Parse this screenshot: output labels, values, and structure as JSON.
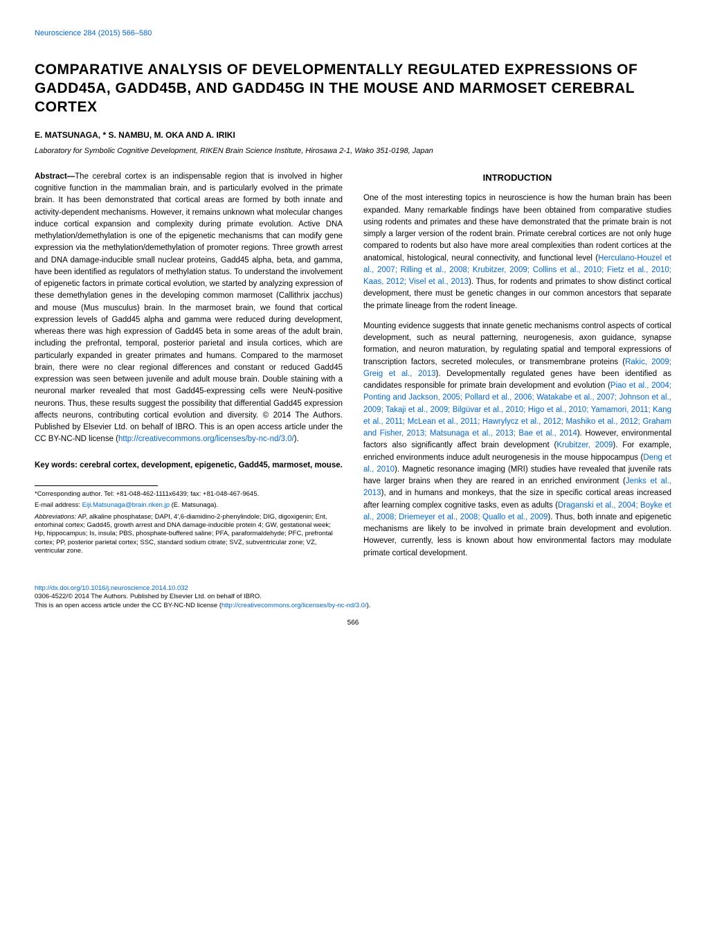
{
  "journal": {
    "name": "Neuroscience 284 (2015) 566–580"
  },
  "title": "COMPARATIVE ANALYSIS OF DEVELOPMENTALLY REGULATED EXPRESSIONS OF GADD45A, GADD45B, AND GADD45G IN THE MOUSE AND MARMOSET CEREBRAL CORTEX",
  "authors": "E. MATSUNAGA, * S. NAMBU, M. OKA AND A. IRIKI",
  "affiliation": "Laboratory for Symbolic Cognitive Development, RIKEN Brain Science Institute, Hirosawa 2-1, Wako 351-0198, Japan",
  "abstract": {
    "label": "Abstract—",
    "text": "The cerebral cortex is an indispensable region that is involved in higher cognitive function in the mammalian brain, and is particularly evolved in the primate brain. It has been demonstrated that cortical areas are formed by both innate and activity-dependent mechanisms. However, it remains unknown what molecular changes induce cortical expansion and complexity during primate evolution. Active DNA methylation/demethylation is one of the epigenetic mechanisms that can modify gene expression via the methylation/demethylation of promoter regions. Three growth arrest and DNA damage-inducible small nuclear proteins, Gadd45 alpha, beta, and gamma, have been identified as regulators of methylation status. To understand the involvement of epigenetic factors in primate cortical evolution, we started by analyzing expression of these demethylation genes in the developing common marmoset (Callithrix jacchus) and mouse (Mus musculus) brain. In the marmoset brain, we found that cortical expression levels of Gadd45 alpha and gamma were reduced during development, whereas there was high expression of Gadd45 beta in some areas of the adult brain, including the prefrontal, temporal, posterior parietal and insula cortices, which are particularly expanded in greater primates and humans. Compared to the marmoset brain, there were no clear regional differences and constant or reduced Gadd45 expression was seen between juvenile and adult mouse brain. Double staining with a neuronal marker revealed that most Gadd45-expressing cells were NeuN-positive neurons. Thus, these results suggest the possibility that differential Gadd45 expression affects neurons, contributing cortical evolution and diversity. © 2014 The Authors. Published by Elsevier Ltd. on behalf of IBRO. This is an open access article under the CC BY-NC-ND license (",
    "license_url": "http://creativecommons.org/licenses/by-nc-nd/3.0/",
    "closing": ")."
  },
  "keywords": "Key words: cerebral cortex, development, epigenetic, Gadd45, marmoset, mouse.",
  "footnotes": {
    "corresponding": "*Corresponding author. Tel: +81-048-462-1111x6439; fax: +81-048-467-9645.",
    "email_prefix": "E-mail address: ",
    "email": "Eiji.Matsunaga@brain.riken.jp",
    "email_suffix": " (E. Matsunaga).",
    "abbreviations_label": "Abbreviations:",
    "abbreviations_text": " AP, alkaline phosphatase; DAPI, 4′,6-diamidino-2-phenylindole; DIG, digoxigenin; Ent, entorhinal cortex; Gadd45, growth arrest and DNA damage-inducible protein 4; GW, gestational week; Hp, hippocampus; Is, insula; PBS, phosphate-buffered saline; PFA, paraformaldehyde; PFC, prefrontal cortex; PP, posterior parietal cortex; SSC, standard sodium citrate; SVZ, subventricular zone; VZ, ventricular zone."
  },
  "intro": {
    "heading": "INTRODUCTION",
    "para1_a": "One of the most interesting topics in neuroscience is how the human brain has been expanded. Many remarkable findings have been obtained from comparative studies using rodents and primates and these have demonstrated that the primate brain is not simply a larger version of the rodent brain. Primate cerebral cortices are not only huge compared to rodents but also have more areal complexities than rodent cortices at the anatomical, histological, neural connectivity, and functional level (",
    "para1_ref1": "Herculano-Houzel et al., 2007; Rilling et al., 2008; Krubitzer, 2009; Collins et al., 2010; Fietz et al., 2010; Kaas, 2012; Visel et al., 2013",
    "para1_b": "). Thus, for rodents and primates to show distinct cortical development, there must be genetic changes in our common ancestors that separate the primate lineage from the rodent lineage.",
    "para2_a": "Mounting evidence suggests that innate genetic mechanisms control aspects of cortical development, such as neural patterning, neurogenesis, axon guidance, synapse formation, and neuron maturation, by regulating spatial and temporal expressions of transcription factors, secreted molecules, or transmembrane proteins (",
    "para2_ref1": "Rakic, 2009; Greig et al., 2013",
    "para2_b": "). Developmentally regulated genes have been identified as candidates responsible for primate brain development and evolution (",
    "para2_ref2": "Piao et al., 2004; Ponting and Jackson, 2005; Pollard et al., 2006; Watakabe et al., 2007; Johnson et al., 2009; Takaji et al., 2009; Bilgüvar et al., 2010; Higo et al., 2010; Yamamori, 2011; Kang et al., 2011; McLean et al., 2011; Hawrylycz et al., 2012; Mashiko et al., 2012; Graham and Fisher, 2013; Matsunaga et al., 2013; Bae et al., 2014",
    "para2_c": "). However, environmental factors also significantly affect brain development (",
    "para2_ref3": "Krubitzer, 2009",
    "para2_d": "). For example, enriched environments induce adult neurogenesis in the mouse hippocampus (",
    "para2_ref4": "Deng et al., 2010",
    "para2_e": "). Magnetic resonance imaging (MRI) studies have revealed that juvenile rats have larger brains when they are reared in an enriched environment (",
    "para2_ref5": "Jenks et al., 2013",
    "para2_f": "), and in humans and monkeys, that the size in specific cortical areas increased after learning complex cognitive tasks, even as adults (",
    "para2_ref6": "Draganski et al., 2004; Boyke et al., 2008; Driemeyer et al., 2008; Quallo et al., 2009",
    "para2_g": "). Thus, both innate and epigenetic mechanisms are likely to be involved in primate brain development and evolution. However, currently, less is known about how environmental factors may modulate primate cortical development."
  },
  "footer": {
    "doi": "http://dx.doi.org/10.1016/j.neuroscience.2014.10.032",
    "copyright": "0306-4522/© 2014 The Authors. Published by Elsevier Ltd. on behalf of IBRO.",
    "license_prefix": "This is an open access article under the CC BY-NC-ND license (",
    "license_url": "http://creativecommons.org/licenses/by-nc-nd/3.0/",
    "license_suffix": ").",
    "page_number": "566"
  }
}
